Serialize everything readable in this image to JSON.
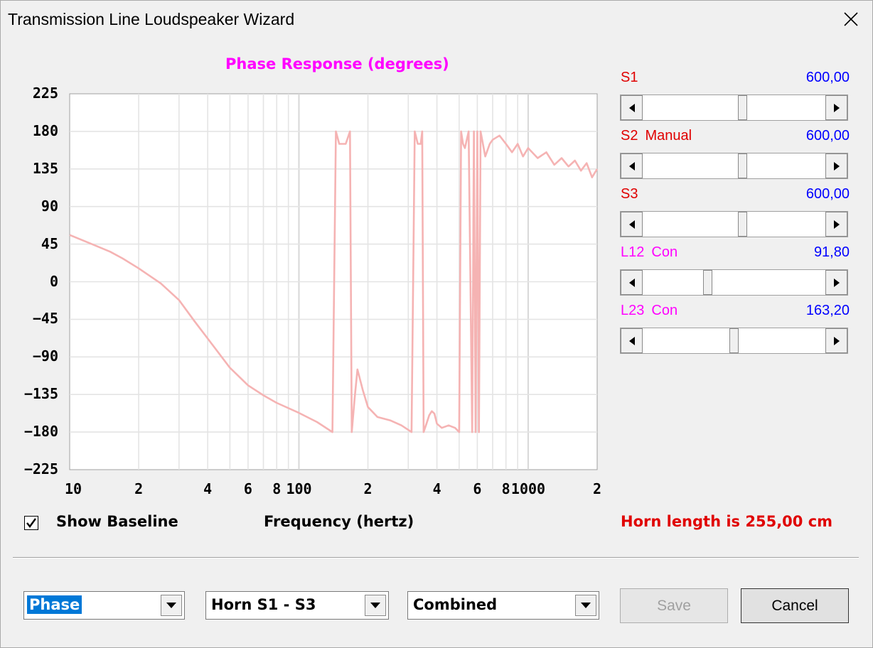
{
  "window": {
    "title": "Transmission Line Loudspeaker Wizard"
  },
  "chart": {
    "title": "Phase Response (degrees)",
    "xlabel": "Frequency (hertz)",
    "y_ticks": [
      "225",
      "180",
      "135",
      "90",
      "45",
      "0",
      "−45",
      "−90",
      "−135",
      "−180",
      "−225"
    ],
    "x_ticks": [
      "10",
      "2",
      "4",
      "6",
      "8",
      "100",
      "2",
      "4",
      "6",
      "8",
      "1000",
      "2"
    ],
    "line_color": "#f5b3b3"
  },
  "chart_data": {
    "type": "line",
    "title": "Phase Response (degrees)",
    "xlabel": "Frequency (hertz)",
    "ylabel": "",
    "x_scale": "log",
    "xlim": [
      10,
      2000
    ],
    "ylim": [
      -225,
      225
    ],
    "grid": true,
    "series": [
      {
        "x": [
          10,
          12,
          15,
          17,
          20,
          25,
          30,
          35,
          40,
          50,
          60,
          70,
          80,
          100,
          120,
          140,
          145,
          150,
          160,
          167,
          170,
          175,
          180,
          190,
          200,
          220,
          250,
          280,
          310,
          320,
          330,
          340,
          345,
          350,
          360,
          370,
          380,
          390,
          400,
          420,
          450,
          480,
          500,
          510,
          520,
          530,
          550,
          570,
          580,
          590,
          600,
          610,
          620,
          650,
          680,
          700,
          750,
          800,
          850,
          900,
          950,
          1000,
          1100,
          1200,
          1300,
          1400,
          1500,
          1600,
          1700,
          1800,
          1900,
          2000
        ],
        "y": [
          56,
          47,
          36,
          28,
          16,
          -2,
          -22,
          -47,
          -68,
          -103,
          -124,
          -136,
          -145,
          -157,
          -168,
          -180,
          180,
          165,
          165,
          180,
          -180,
          -140,
          -105,
          -130,
          -150,
          -162,
          -166,
          -172,
          -180,
          180,
          165,
          165,
          180,
          -180,
          -170,
          -160,
          -155,
          -158,
          -170,
          -175,
          -172,
          -175,
          -180,
          180,
          165,
          160,
          180,
          -180,
          180,
          -180,
          180,
          -180,
          180,
          150,
          165,
          170,
          175,
          165,
          155,
          165,
          150,
          160,
          148,
          155,
          140,
          148,
          138,
          145,
          133,
          142,
          125,
          135
        ]
      }
    ]
  },
  "sliders": [
    {
      "name": "S1",
      "extra": "",
      "value": "600,00",
      "label_color": "#e00000",
      "fraction": 0.55
    },
    {
      "name": "S2",
      "extra": "Manual",
      "value": "600,00",
      "label_color": "#e00000",
      "fraction": 0.55
    },
    {
      "name": "S3",
      "extra": "",
      "value": "600,00",
      "label_color": "#e00000",
      "fraction": 0.55
    },
    {
      "name": "L12",
      "extra": "Con",
      "value": "91,80",
      "label_color": "#ff00ff",
      "fraction": 0.35
    },
    {
      "name": "L23",
      "extra": "Con",
      "value": "163,20",
      "label_color": "#ff00ff",
      "fraction": 0.5
    }
  ],
  "options": {
    "show_baseline_label": "Show Baseline",
    "show_baseline_checked": true,
    "horn_length": "Horn length is 255,00 cm"
  },
  "combos": {
    "mode": "Phase",
    "section": "Horn S1 - S3",
    "output": "Combined"
  },
  "buttons": {
    "save": "Save",
    "cancel": "Cancel"
  }
}
